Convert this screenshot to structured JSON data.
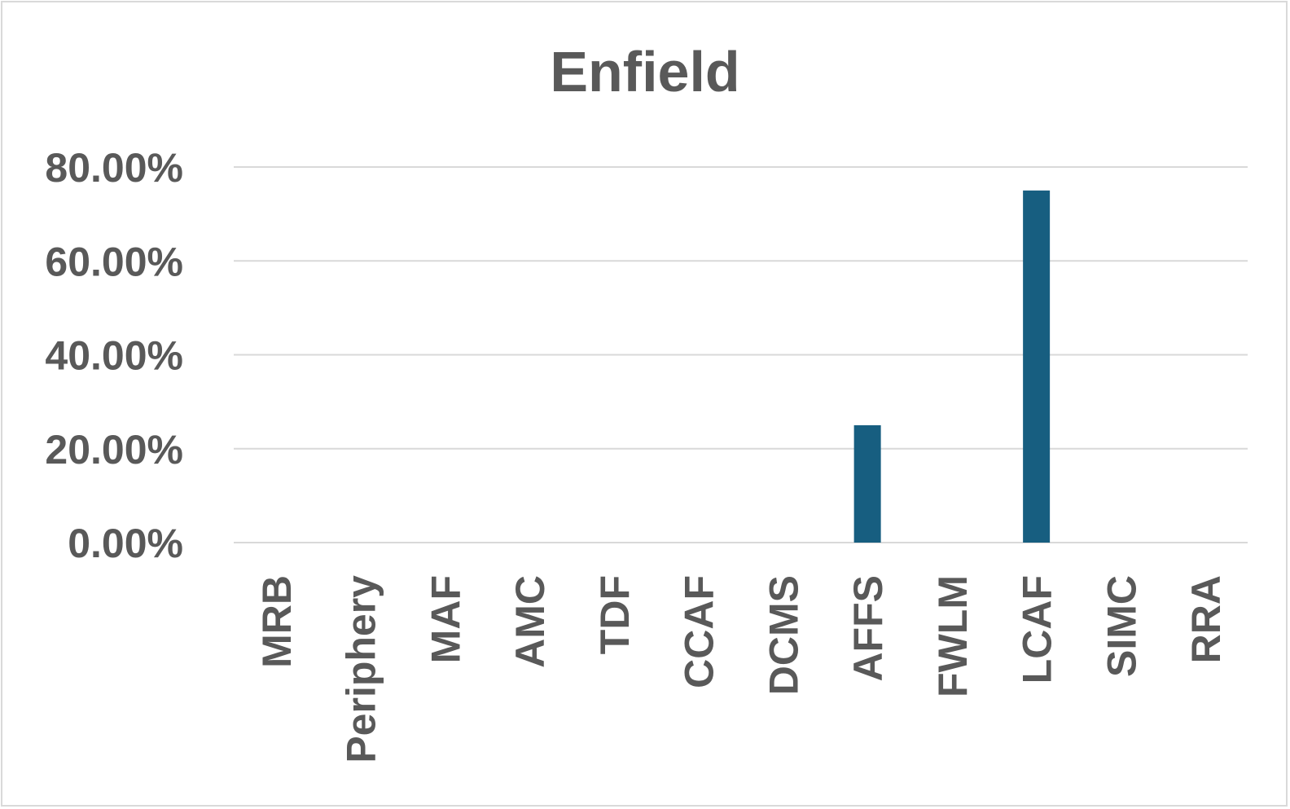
{
  "chart_data": {
    "type": "bar",
    "title": "Enfield",
    "xlabel": "",
    "ylabel": "",
    "categories": [
      "MRB",
      "Periphery",
      "MAF",
      "AMC",
      "TDF",
      "CCAF",
      "DCMS",
      "AFFS",
      "FWLM",
      "LCAF",
      "SIMC",
      "RRA"
    ],
    "values": [
      0,
      0,
      0,
      0,
      0,
      0,
      0,
      0.25,
      0,
      0.75,
      0,
      0
    ],
    "ylim": [
      0,
      0.8
    ],
    "yticks": [
      0,
      0.2,
      0.4,
      0.6,
      0.8
    ],
    "ytick_labels": [
      "0.00%",
      "20.00%",
      "40.00%",
      "60.00%",
      "80.00%"
    ],
    "bar_color": "#175e80",
    "grid": true,
    "legend": "none"
  }
}
